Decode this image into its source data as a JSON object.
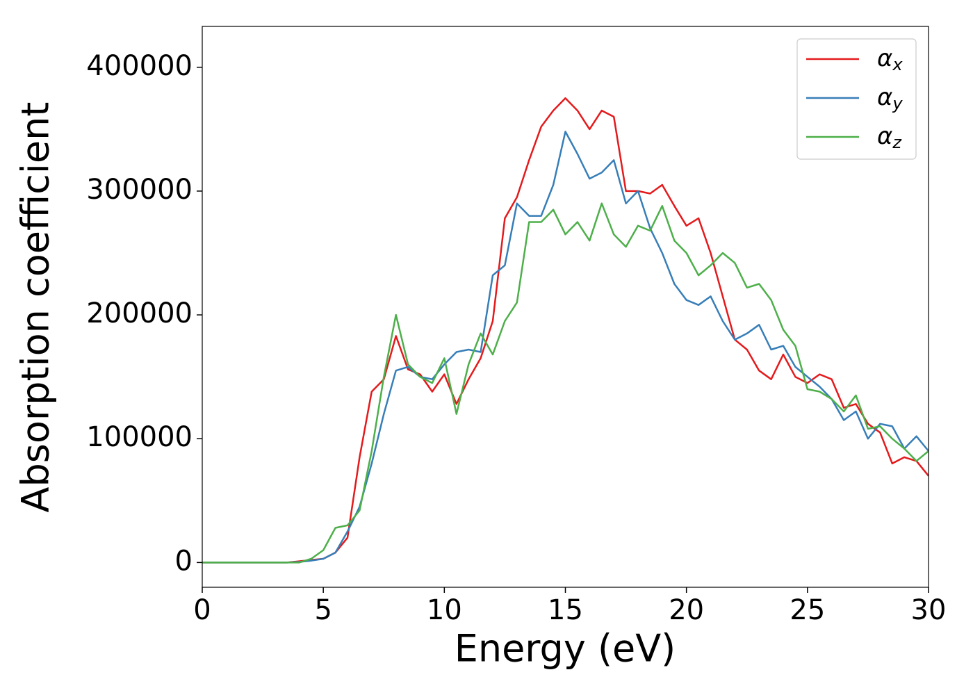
{
  "chart_data": {
    "type": "line",
    "xlabel": "Energy (eV)",
    "ylabel": "Absorption coefficient",
    "x": [
      0,
      0.5,
      1,
      1.5,
      2,
      2.5,
      3,
      3.5,
      4,
      4.5,
      5,
      5.5,
      6,
      6.5,
      7,
      7.5,
      8,
      8.5,
      9,
      9.5,
      10,
      10.5,
      11,
      11.5,
      12,
      12.5,
      13,
      13.5,
      14,
      14.5,
      15,
      15.5,
      16,
      16.5,
      17,
      17.5,
      18,
      18.5,
      19,
      19.5,
      20,
      20.5,
      21,
      21.5,
      22,
      22.5,
      23,
      23.5,
      24,
      24.5,
      25,
      25.5,
      26,
      26.5,
      27,
      27.5,
      28,
      28.5,
      29,
      29.5,
      30
    ],
    "series": [
      {
        "name": "αx",
        "color": "#e41a1c",
        "values": [
          0,
          0,
          0,
          0,
          0,
          0,
          0,
          0,
          1000,
          2000,
          3000,
          8000,
          20000,
          85000,
          138000,
          148000,
          183000,
          156000,
          152000,
          138000,
          152000,
          128000,
          148000,
          165000,
          195000,
          278000,
          295000,
          325000,
          352000,
          365000,
          375000,
          365000,
          350000,
          365000,
          360000,
          300000,
          300000,
          298000,
          305000,
          288000,
          272000,
          278000,
          250000,
          215000,
          180000,
          172000,
          155000,
          148000,
          168000,
          150000,
          145000,
          152000,
          148000,
          125000,
          128000,
          112000,
          105000,
          80000,
          85000,
          82000,
          70000
        ]
      },
      {
        "name": "αy",
        "color": "#377eb8",
        "values": [
          0,
          0,
          0,
          0,
          0,
          0,
          0,
          0,
          500,
          1500,
          3000,
          8000,
          25000,
          45000,
          80000,
          120000,
          155000,
          158000,
          150000,
          148000,
          160000,
          170000,
          172000,
          170000,
          232000,
          240000,
          290000,
          280000,
          280000,
          305000,
          348000,
          330000,
          310000,
          315000,
          325000,
          290000,
          300000,
          270000,
          250000,
          225000,
          212000,
          208000,
          215000,
          195000,
          180000,
          185000,
          192000,
          172000,
          175000,
          158000,
          150000,
          142000,
          132000,
          115000,
          122000,
          100000,
          112000,
          110000,
          92000,
          102000,
          90000
        ]
      },
      {
        "name": "αz",
        "color": "#4daf4a",
        "values": [
          0,
          0,
          0,
          0,
          0,
          0,
          0,
          0,
          0,
          3000,
          10000,
          28000,
          30000,
          42000,
          90000,
          150000,
          200000,
          160000,
          150000,
          145000,
          165000,
          120000,
          160000,
          185000,
          168000,
          195000,
          210000,
          275000,
          275000,
          285000,
          265000,
          275000,
          260000,
          290000,
          265000,
          255000,
          272000,
          268000,
          288000,
          260000,
          250000,
          232000,
          240000,
          250000,
          242000,
          222000,
          225000,
          212000,
          188000,
          175000,
          140000,
          138000,
          132000,
          122000,
          135000,
          108000,
          110000,
          100000,
          92000,
          82000,
          90000
        ]
      }
    ],
    "xlim": [
      0,
      30
    ],
    "ylim": [
      -20000,
      433000
    ],
    "xticks": [
      0,
      5,
      10,
      15,
      20,
      25,
      30
    ],
    "yticks": [
      0,
      100000,
      200000,
      300000,
      400000
    ],
    "legend": "upper right"
  }
}
